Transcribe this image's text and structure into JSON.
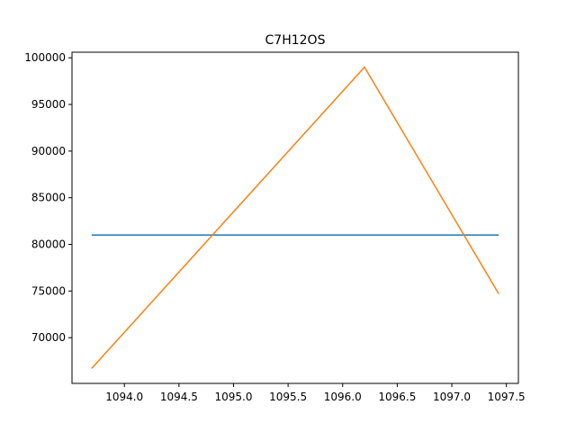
{
  "chart_data": {
    "type": "line",
    "title": "C7H12OS",
    "xlabel": "",
    "ylabel": "",
    "xlim": [
      1093.52,
      1097.61
    ],
    "ylim": [
      65100,
      100600
    ],
    "x_ticks": [
      1094.0,
      1094.5,
      1095.0,
      1095.5,
      1096.0,
      1096.5,
      1097.0,
      1097.5
    ],
    "x_tick_labels": [
      "1094.0",
      "1094.5",
      "1095.0",
      "1095.5",
      "1096.0",
      "1096.5",
      "1097.0",
      "1097.5"
    ],
    "y_ticks": [
      70000,
      75000,
      80000,
      85000,
      90000,
      95000,
      100000
    ],
    "y_tick_labels": [
      "70000",
      "75000",
      "80000",
      "85000",
      "90000",
      "95000",
      "100000"
    ],
    "grid": false,
    "series": [
      {
        "color": "#1f77b4",
        "x": [
          1093.7,
          1097.43
        ],
        "y": [
          81000,
          81000
        ]
      },
      {
        "color": "#ff7f0e",
        "x": [
          1093.7,
          1096.2,
          1097.43
        ],
        "y": [
          66700,
          99000,
          74700
        ]
      }
    ]
  }
}
